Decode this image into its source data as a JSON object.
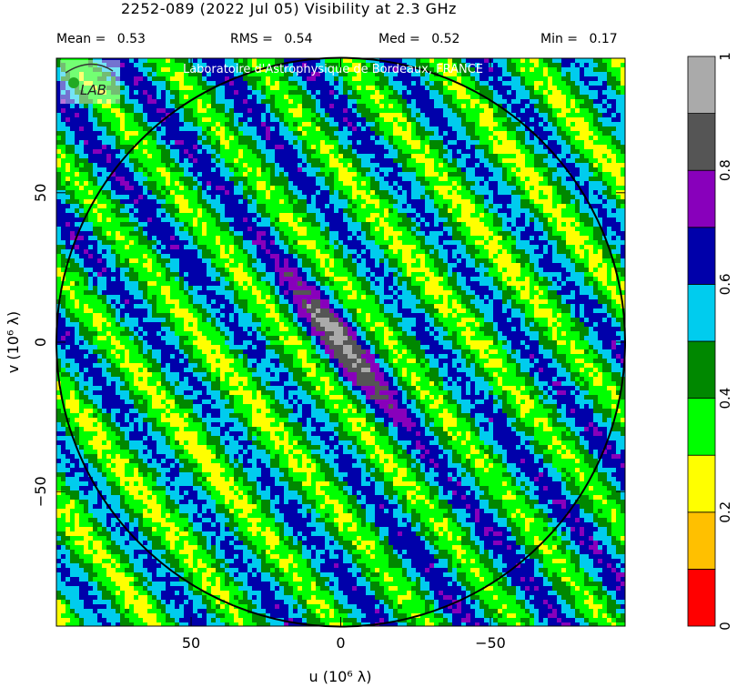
{
  "header": {
    "title": "2252-089   (2022 Jul 05)   Visibility at  2.3 GHz",
    "stats": [
      {
        "label": "Mean =",
        "value": "0.53"
      },
      {
        "label": "RMS =",
        "value": "0.54"
      },
      {
        "label": "Med =",
        "value": "0.52"
      },
      {
        "label": "Min =",
        "value": "0.17"
      }
    ]
  },
  "watermark": {
    "text": "Laboratoire d'Astrophysique de Bordeaux, FRANCE",
    "logo_text": "LAB"
  },
  "chart_data": {
    "type": "heatmap",
    "title": "2252-089   (2022 Jul 05)   Visibility at  2.3 GHz",
    "xlabel": "u  (10⁶ λ)",
    "ylabel": "v  (10⁶ λ)",
    "xlim": [
      95,
      -95
    ],
    "ylim": [
      -95,
      95
    ],
    "x_ticks": [
      50,
      0,
      -50
    ],
    "x_tick_labels": [
      "50",
      "0",
      "−50"
    ],
    "y_ticks": [
      50,
      0,
      -50
    ],
    "y_tick_labels": [
      "50",
      "0",
      "−50"
    ],
    "circle_radius": 95,
    "colorbar": {
      "min": 0,
      "max": 1,
      "ticks": [
        0,
        0.2,
        0.4,
        0.6,
        0.8,
        1
      ],
      "tick_labels": [
        "0",
        "0.2",
        "0.4",
        "0.6",
        "0.8",
        "1"
      ],
      "levels": [
        {
          "from": 0.0,
          "to": 0.1,
          "color": "#ff0000"
        },
        {
          "from": 0.1,
          "to": 0.2,
          "color": "#ffc000"
        },
        {
          "from": 0.2,
          "to": 0.3,
          "color": "#ffff00"
        },
        {
          "from": 0.3,
          "to": 0.4,
          "color": "#00ff00"
        },
        {
          "from": 0.4,
          "to": 0.5,
          "color": "#008800"
        },
        {
          "from": 0.5,
          "to": 0.6,
          "color": "#00ccee"
        },
        {
          "from": 0.6,
          "to": 0.7,
          "color": "#0000aa"
        },
        {
          "from": 0.7,
          "to": 0.8,
          "color": "#8800bb"
        },
        {
          "from": 0.8,
          "to": 0.9,
          "color": "#555555"
        },
        {
          "from": 0.9,
          "to": 1.0,
          "color": "#aaaaaa"
        }
      ]
    }
  }
}
